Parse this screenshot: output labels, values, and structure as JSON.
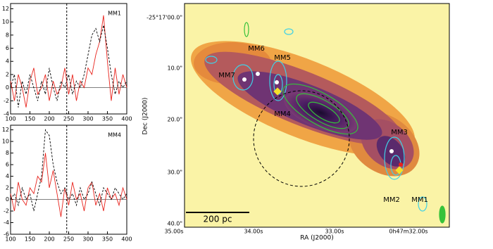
{
  "chart_data": [
    {
      "type": "line",
      "annotation": "MM1",
      "x": [
        100,
        110,
        120,
        130,
        140,
        150,
        160,
        170,
        180,
        190,
        200,
        210,
        220,
        230,
        240,
        250,
        260,
        270,
        280,
        290,
        300,
        310,
        320,
        330,
        340,
        350,
        360,
        370,
        380,
        390,
        400
      ],
      "series": [
        {
          "color": "#e8231c",
          "dashed": false,
          "values": [
            1,
            -2,
            2,
            0,
            -3,
            1,
            3,
            -1,
            0,
            2,
            -2,
            1,
            -1,
            0,
            3,
            -1,
            2,
            -2,
            1,
            0,
            3,
            2,
            5,
            7,
            11,
            4,
            -2,
            3,
            -1,
            2,
            0
          ]
        },
        {
          "color": "#000000",
          "dashed": true,
          "values": [
            0,
            2,
            -3,
            1,
            -1,
            2,
            0,
            -2,
            1,
            -1,
            3,
            0,
            -2,
            1,
            0,
            2,
            -1,
            1,
            0,
            2,
            5,
            8,
            9,
            7,
            9.5,
            6,
            2,
            -1,
            1,
            0,
            1
          ]
        }
      ],
      "vline": 245,
      "xlim": [
        100,
        400
      ],
      "xticks": [
        100,
        150,
        200,
        250,
        300,
        350,
        400
      ],
      "ylim": [
        -4,
        12.8
      ],
      "yticks": [
        -4,
        -2,
        0,
        2,
        4,
        6,
        8,
        10,
        12
      ]
    },
    {
      "type": "line",
      "annotation": "MM4",
      "x": [
        100,
        110,
        120,
        130,
        140,
        150,
        160,
        170,
        180,
        190,
        200,
        210,
        220,
        230,
        240,
        250,
        260,
        270,
        280,
        290,
        300,
        310,
        320,
        330,
        340,
        350,
        360,
        370,
        380,
        390,
        400
      ],
      "series": [
        {
          "color": "#e8231c",
          "dashed": false,
          "values": [
            1,
            -2,
            3,
            0,
            -1,
            2,
            1,
            4,
            3,
            8,
            2,
            5,
            1,
            -3,
            2,
            -1,
            3,
            0,
            1,
            -2,
            2,
            3,
            -1,
            1,
            -2,
            2,
            0,
            1,
            -1,
            2,
            0
          ]
        },
        {
          "color": "#000000",
          "dashed": true,
          "values": [
            0,
            1,
            -1,
            2,
            0,
            1,
            -2,
            1,
            4,
            12,
            11,
            6,
            3,
            1,
            2,
            0,
            1,
            -1,
            2,
            0,
            1,
            3,
            1,
            -1,
            2,
            1,
            0,
            2,
            1,
            0,
            1
          ]
        }
      ],
      "vline": 245,
      "xlim": [
        100,
        400
      ],
      "xticks": [
        100,
        150,
        200,
        250,
        300,
        350,
        400
      ],
      "ylim": [
        -6,
        12.8
      ],
      "yticks": [
        -6,
        -4,
        -2,
        0,
        2,
        4,
        6,
        8,
        10,
        12
      ]
    },
    {
      "type": "image",
      "xlabel": "RA (J2000)",
      "ylabel": "Dec (J2000)",
      "xtick_labels": [
        "35.00s",
        "34.00s",
        "33.00s",
        "0h47m32.00s"
      ],
      "ytick_labels": [
        "-25°17'00.0\"",
        "10.0\"",
        "20.0\"",
        "30.0\"",
        "40.0\""
      ],
      "sources": [
        "MM1",
        "MM2",
        "MM3",
        "MM4",
        "MM5",
        "MM6",
        "MM7"
      ],
      "scalebar": "200 pc"
    }
  ]
}
